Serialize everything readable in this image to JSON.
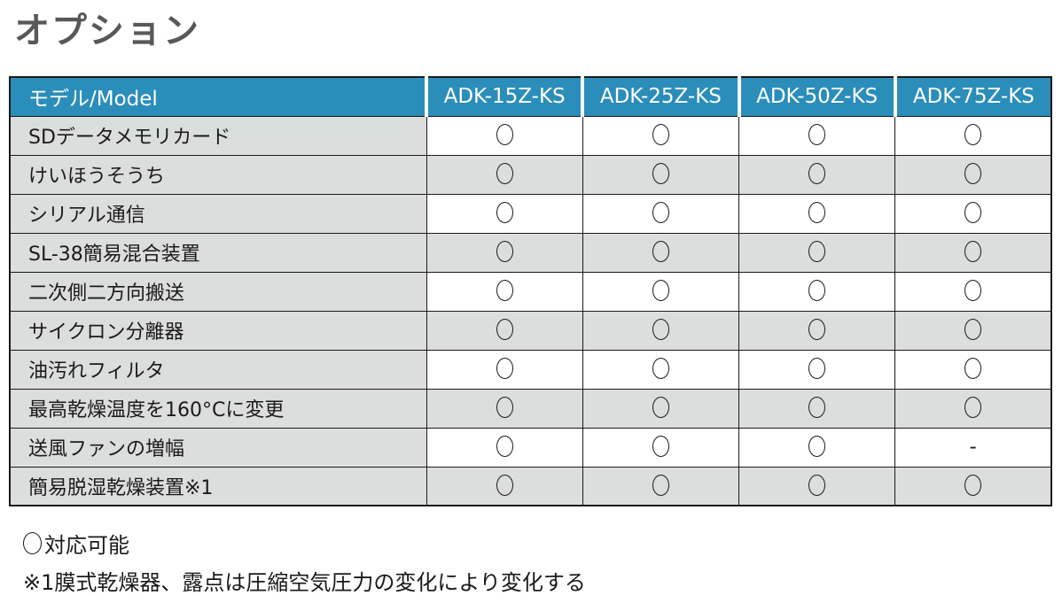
{
  "page_title": "オプション",
  "table": {
    "header": {
      "model_label": "モデル/Model",
      "columns": [
        "ADK-15Z-KS",
        "ADK-25Z-KS",
        "ADK-50Z-KS",
        "ADK-75Z-KS"
      ]
    },
    "rows": [
      {
        "label": "SDデータメモリカード",
        "values": [
          "○",
          "○",
          "○",
          "○"
        ]
      },
      {
        "label": "けいほうそうち",
        "values": [
          "○",
          "○",
          "○",
          "○"
        ]
      },
      {
        "label": "シリアル通信",
        "values": [
          "○",
          "○",
          "○",
          "○"
        ]
      },
      {
        "label": "SL-38簡易混合装置",
        "values": [
          "○",
          "○",
          "○",
          "○"
        ]
      },
      {
        "label": "二次側二方向搬送",
        "values": [
          "○",
          "○",
          "○",
          "○"
        ]
      },
      {
        "label": "サイクロン分離器",
        "values": [
          "○",
          "○",
          "○",
          "○"
        ]
      },
      {
        "label": "油汚れフィルタ",
        "values": [
          "○",
          "○",
          "○",
          "○"
        ]
      },
      {
        "label": "最高乾燥温度を160°Cに変更",
        "values": [
          "○",
          "○",
          "○",
          "○"
        ]
      },
      {
        "label": "送風ファンの増幅",
        "values": [
          "○",
          "○",
          "○",
          "-"
        ]
      },
      {
        "label": "簡易脱湿乾燥装置※1",
        "values": [
          "○",
          "○",
          "○",
          "○"
        ]
      }
    ]
  },
  "legend": {
    "circle_label": "対応可能",
    "note": "※1膜式乾燥器、露点は圧縮空気圧力の変化により変化する"
  },
  "colors": {
    "header_bg": "#2b8dba",
    "header_text": "#ffffff",
    "row_gray": "#dcdddd",
    "border": "#1a1a1a",
    "title_text": "#58585a",
    "body_text": "#1a1a1a"
  }
}
